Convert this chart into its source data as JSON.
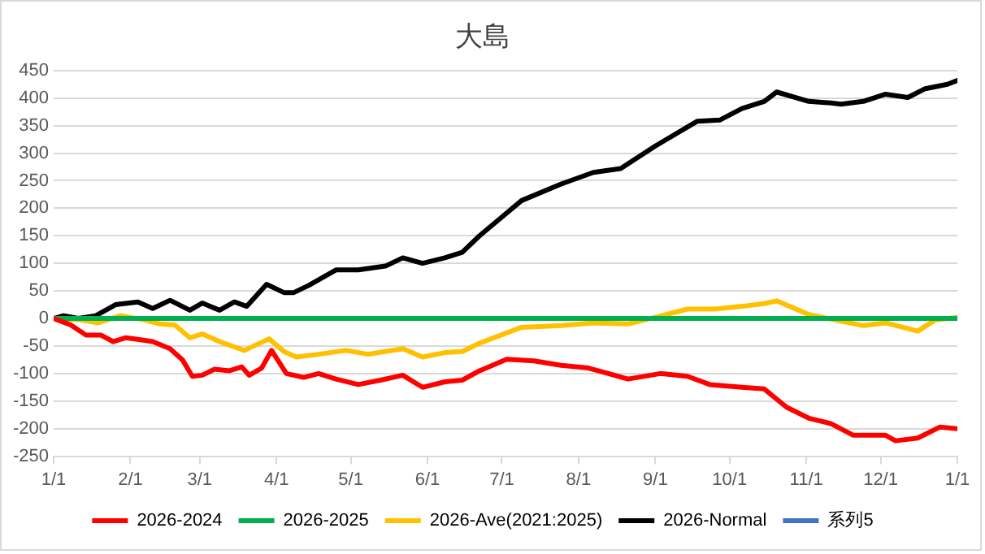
{
  "chart_data": {
    "type": "line",
    "title": "大島",
    "xlim": [
      "2026-01-01",
      "2027-01-01"
    ],
    "xticks": [
      {
        "value": "2026-01-01",
        "label": "1/1"
      },
      {
        "value": "2026-02-01",
        "label": "2/1"
      },
      {
        "value": "2026-03-01",
        "label": "3/1"
      },
      {
        "value": "2026-04-01",
        "label": "4/1"
      },
      {
        "value": "2026-05-01",
        "label": "5/1"
      },
      {
        "value": "2026-06-01",
        "label": "6/1"
      },
      {
        "value": "2026-07-01",
        "label": "7/1"
      },
      {
        "value": "2026-08-01",
        "label": "8/1"
      },
      {
        "value": "2026-09-01",
        "label": "9/1"
      },
      {
        "value": "2026-10-01",
        "label": "10/1"
      },
      {
        "value": "2026-11-01",
        "label": "11/1"
      },
      {
        "value": "2026-12-01",
        "label": "12/1"
      },
      {
        "value": "2027-01-01",
        "label": "1/1"
      }
    ],
    "ylim": [
      -250,
      450
    ],
    "yticks": [
      -250,
      -200,
      -150,
      -100,
      -50,
      0,
      50,
      100,
      150,
      200,
      250,
      300,
      350,
      400,
      450
    ],
    "grid": "y",
    "legend": "bottom",
    "marker": "none",
    "line_style": "solid",
    "series": [
      {
        "name": "2026-2024",
        "color": "#ff0000",
        "x": [
          "2026-01-01",
          "2026-01-08",
          "2026-01-14",
          "2026-01-20",
          "2026-01-25",
          "2026-01-30",
          "2026-02-04",
          "2026-02-10",
          "2026-02-17",
          "2026-02-22",
          "2026-02-26",
          "2026-03-02",
          "2026-03-07",
          "2026-03-13",
          "2026-03-18",
          "2026-03-21",
          "2026-03-26",
          "2026-03-30",
          "2026-04-05",
          "2026-04-12",
          "2026-04-18",
          "2026-04-25",
          "2026-05-04",
          "2026-05-13",
          "2026-05-22",
          "2026-05-30",
          "2026-06-08",
          "2026-06-15",
          "2026-06-22",
          "2026-07-03",
          "2026-07-14",
          "2026-07-25",
          "2026-08-05",
          "2026-08-21",
          "2026-09-03",
          "2026-09-14",
          "2026-09-23",
          "2026-10-06",
          "2026-10-15",
          "2026-10-24",
          "2026-11-02",
          "2026-11-11",
          "2026-11-20",
          "2026-12-03",
          "2026-12-07",
          "2026-12-16",
          "2026-12-25",
          "2027-01-01"
        ],
        "values": [
          0,
          -12,
          -30,
          -30,
          -42,
          -35,
          -38,
          -42,
          -55,
          -75,
          -105,
          -103,
          -92,
          -95,
          -88,
          -103,
          -90,
          -58,
          -100,
          -107,
          -100,
          -110,
          -120,
          -112,
          -103,
          -125,
          -115,
          -112,
          -95,
          -74,
          -77,
          -85,
          -90,
          -110,
          -100,
          -105,
          -120,
          -125,
          -128,
          -161,
          -181,
          -191,
          -212,
          -212,
          -222,
          -217,
          -197,
          -200
        ]
      },
      {
        "name": "2026-2025",
        "color": "#00b050",
        "x": [
          "2026-01-01",
          "2027-01-01"
        ],
        "values": [
          0,
          0
        ]
      },
      {
        "name": "2026-Ave(2021:2025)",
        "color": "#ffc000",
        "x": [
          "2026-01-01",
          "2026-01-11",
          "2026-01-19",
          "2026-01-28",
          "2026-02-06",
          "2026-02-13",
          "2026-02-19",
          "2026-02-25",
          "2026-03-02",
          "2026-03-09",
          "2026-03-19",
          "2026-03-29",
          "2026-04-04",
          "2026-04-09",
          "2026-04-18",
          "2026-04-29",
          "2026-05-08",
          "2026-05-22",
          "2026-05-30",
          "2026-06-08",
          "2026-06-15",
          "2026-06-22",
          "2026-07-09",
          "2026-07-25",
          "2026-08-07",
          "2026-08-21",
          "2026-09-01",
          "2026-09-14",
          "2026-09-25",
          "2026-10-06",
          "2026-10-15",
          "2026-10-20",
          "2026-11-02",
          "2026-11-13",
          "2026-11-24",
          "2026-12-03",
          "2026-12-16",
          "2026-12-23",
          "2027-01-01"
        ],
        "values": [
          0,
          -2,
          -8,
          5,
          -2,
          -10,
          -12,
          -35,
          -28,
          -42,
          -58,
          -37,
          -60,
          -70,
          -65,
          -58,
          -65,
          -55,
          -70,
          -62,
          -60,
          -45,
          -16,
          -13,
          -8,
          -10,
          2,
          17,
          17,
          22,
          27,
          32,
          7,
          -3,
          -13,
          -8,
          -23,
          -3,
          2
        ]
      },
      {
        "name": "2026-Normal",
        "color": "#000000",
        "x": [
          "2026-01-01",
          "2026-01-05",
          "2026-01-11",
          "2026-01-18",
          "2026-01-26",
          "2026-02-04",
          "2026-02-10",
          "2026-02-17",
          "2026-02-25",
          "2026-03-02",
          "2026-03-09",
          "2026-03-15",
          "2026-03-20",
          "2026-03-28",
          "2026-04-04",
          "2026-04-08",
          "2026-04-14",
          "2026-04-25",
          "2026-05-04",
          "2026-05-15",
          "2026-05-22",
          "2026-05-30",
          "2026-06-08",
          "2026-06-15",
          "2026-06-22",
          "2026-07-09",
          "2026-07-25",
          "2026-08-07",
          "2026-08-18",
          "2026-09-01",
          "2026-09-18",
          "2026-09-27",
          "2026-10-06",
          "2026-10-15",
          "2026-10-20",
          "2026-11-02",
          "2026-11-11",
          "2026-11-15",
          "2026-11-24",
          "2026-12-03",
          "2026-12-12",
          "2026-12-19",
          "2026-12-28",
          "2027-01-01"
        ],
        "values": [
          0,
          5,
          0,
          5,
          25,
          30,
          18,
          33,
          15,
          28,
          15,
          30,
          22,
          62,
          47,
          47,
          60,
          88,
          88,
          95,
          110,
          100,
          110,
          120,
          150,
          214,
          244,
          265,
          272,
          313,
          358,
          360,
          381,
          394,
          411,
          394,
          391,
          389,
          394,
          407,
          401,
          417,
          425,
          432
        ]
      },
      {
        "name": "系列5",
        "color": "#4472c4"
      }
    ]
  }
}
